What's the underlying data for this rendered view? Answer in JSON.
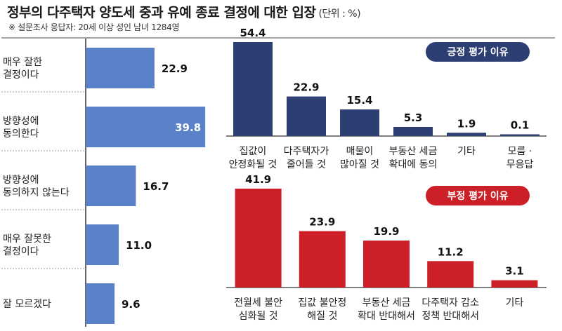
{
  "header": {
    "title": "정부의 다주택자 양도세 중과 유예 종료 결정에 대한 입장",
    "unit": "(단위 : %)",
    "note": "※ 설문조사 응답자: 20세 이상 성인 남녀 1284명"
  },
  "colors": {
    "left_bar": "#5b82c8",
    "positive_bar": "#2d3e73",
    "negative_bar": "#cc1f27",
    "positive_badge": "#2d3e73",
    "negative_badge": "#cc1f27",
    "divider": "#9a9a9a"
  },
  "chart_data": [
    {
      "type": "bar",
      "orientation": "horizontal",
      "categories": [
        "매우 잘한\n결정이다",
        "방향성에\n동의한다",
        "방향성에\n동의하지 않는다",
        "매우 잘못한\n결정이다",
        "잘 모르겠다"
      ],
      "values": [
        22.9,
        39.8,
        16.7,
        11.0,
        9.6
      ],
      "value_labels": [
        "22.9",
        "39.8",
        "16.7",
        "11.0",
        "9.6"
      ],
      "xlim": [
        0,
        40
      ]
    },
    {
      "type": "bar",
      "title": "긍정 평가 이유",
      "categories": [
        "집값이\n안정화될 것",
        "다주택자가\n줄어들 것",
        "매물이\n많아질 것",
        "부동산 세금\n확대에 동의",
        "기타",
        "모름 ·\n무응답"
      ],
      "values": [
        54.4,
        22.9,
        15.4,
        5.3,
        1.9,
        0.1
      ],
      "value_labels": [
        "54.4",
        "22.9",
        "15.4",
        "5.3",
        "1.9",
        "0.1"
      ],
      "ylim": [
        0,
        54.4
      ]
    },
    {
      "type": "bar",
      "title": "부정 평가 이유",
      "categories": [
        "전월세 불안\n심화될 것",
        "집값 불안정\n해질 것",
        "부동산 세금\n확대 반대해서",
        "다주택자 감소\n정책 반대해서",
        "기타"
      ],
      "values": [
        41.9,
        23.9,
        19.9,
        11.2,
        3.1
      ],
      "value_labels": [
        "41.9",
        "23.9",
        "19.9",
        "11.2",
        "3.1"
      ],
      "ylim": [
        0,
        41.9
      ]
    }
  ]
}
